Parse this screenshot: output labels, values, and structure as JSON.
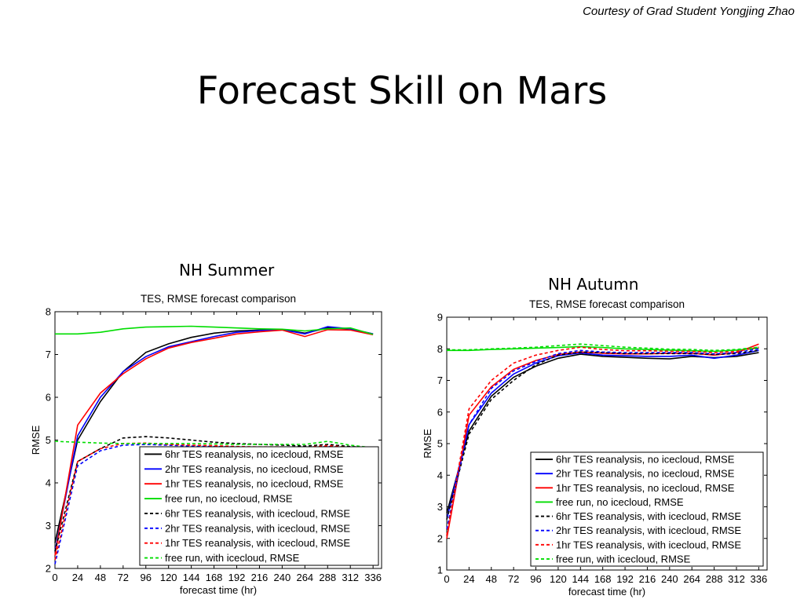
{
  "credit": "Courtesy of Grad Student Yongjing Zhao",
  "slide_title": "Forecast Skill on Mars",
  "panels": [
    {
      "caption": "NH Summer"
    },
    {
      "caption": "NH Autumn"
    }
  ],
  "series_styles": [
    {
      "name": "6hr TES reanalysis, no icecloud, RMSE",
      "color": "#000000",
      "dashed": false
    },
    {
      "name": "2hr TES reanalysis, no icecloud, RMSE",
      "color": "#0000ff",
      "dashed": false
    },
    {
      "name": "1hr TES reanalysis, no icecloud, RMSE",
      "color": "#ff0000",
      "dashed": false
    },
    {
      "name": "free run, no icecloud, RMSE",
      "color": "#00dd00",
      "dashed": false
    },
    {
      "name": "6hr TES reanalysis, with icecloud, RMSE",
      "color": "#000000",
      "dashed": true
    },
    {
      "name": "2hr TES reanalysis, with icecloud, RMSE",
      "color": "#0000ff",
      "dashed": true
    },
    {
      "name": "1hr TES reanalysis, with icecloud, RMSE",
      "color": "#ff0000",
      "dashed": true
    },
    {
      "name": "free run, with icecloud, RMSE",
      "color": "#00dd00",
      "dashed": true
    }
  ],
  "chart_data": [
    {
      "type": "line",
      "title": "TES, RMSE forecast comparison",
      "xlabel": "forecast time (hr)",
      "ylabel": "RMSE",
      "xlim": [
        0,
        345
      ],
      "ylim": [
        2,
        8
      ],
      "xticks": [
        0,
        24,
        48,
        72,
        96,
        120,
        144,
        168,
        192,
        216,
        240,
        264,
        288,
        312,
        336
      ],
      "yticks": [
        2,
        3,
        4,
        5,
        6,
        7,
        8
      ],
      "grid": false,
      "legend": "bottom-right",
      "x": [
        0,
        24,
        48,
        72,
        96,
        120,
        144,
        168,
        192,
        216,
        240,
        264,
        288,
        312,
        336
      ],
      "series": [
        {
          "name": "6hr TES reanalysis, no icecloud, RMSE",
          "values": [
            2.6,
            5.0,
            5.9,
            6.6,
            7.05,
            7.25,
            7.4,
            7.5,
            7.55,
            7.57,
            7.58,
            7.5,
            7.62,
            7.6,
            7.48
          ]
        },
        {
          "name": "2hr TES reanalysis, no icecloud, RMSE",
          "values": [
            2.4,
            5.1,
            6.0,
            6.6,
            6.95,
            7.18,
            7.3,
            7.42,
            7.52,
            7.56,
            7.58,
            7.48,
            7.65,
            7.6,
            7.48
          ]
        },
        {
          "name": "1hr TES reanalysis, no icecloud, RMSE",
          "values": [
            2.3,
            5.35,
            6.1,
            6.55,
            6.9,
            7.15,
            7.28,
            7.38,
            7.48,
            7.53,
            7.57,
            7.42,
            7.58,
            7.57,
            7.46
          ]
        },
        {
          "name": "free run, no icecloud, RMSE",
          "values": [
            7.48,
            7.48,
            7.52,
            7.6,
            7.64,
            7.65,
            7.66,
            7.64,
            7.62,
            7.6,
            7.59,
            7.55,
            7.6,
            7.62,
            7.47
          ]
        },
        {
          "name": "6hr TES reanalysis, with icecloud, RMSE",
          "values": [
            2.4,
            4.5,
            4.8,
            5.05,
            5.08,
            5.05,
            5.0,
            4.95,
            4.92,
            4.9,
            4.88,
            4.86,
            4.9,
            4.85,
            4.82
          ]
        },
        {
          "name": "2hr TES reanalysis, with icecloud, RMSE",
          "values": [
            2.1,
            4.4,
            4.75,
            4.88,
            4.9,
            4.88,
            4.86,
            4.85,
            4.84,
            4.83,
            4.83,
            4.82,
            4.85,
            4.82,
            4.8
          ]
        },
        {
          "name": "1hr TES reanalysis, with icecloud, RMSE",
          "values": [
            2.2,
            4.5,
            4.8,
            4.92,
            4.93,
            4.9,
            4.88,
            4.87,
            4.85,
            4.84,
            4.84,
            4.83,
            4.87,
            4.83,
            4.81
          ]
        },
        {
          "name": "free run, with icecloud, RMSE",
          "values": [
            4.97,
            4.95,
            4.93,
            4.92,
            4.92,
            4.92,
            4.92,
            4.91,
            4.9,
            4.9,
            4.9,
            4.9,
            4.97,
            4.88,
            4.82
          ]
        }
      ]
    },
    {
      "type": "line",
      "title": "TES, RMSE forecast comparison",
      "xlabel": "forecast time (hr)",
      "ylabel": "RMSE",
      "xlim": [
        0,
        345
      ],
      "ylim": [
        1,
        9
      ],
      "xticks": [
        0,
        24,
        48,
        72,
        96,
        120,
        144,
        168,
        192,
        216,
        240,
        264,
        288,
        312,
        336
      ],
      "yticks": [
        1,
        2,
        3,
        4,
        5,
        6,
        7,
        8,
        9
      ],
      "grid": false,
      "legend": "bottom-right",
      "x": [
        0,
        24,
        48,
        72,
        96,
        120,
        144,
        168,
        192,
        216,
        240,
        264,
        288,
        312,
        336
      ],
      "series": [
        {
          "name": "6hr TES reanalysis, no icecloud, RMSE",
          "values": [
            2.8,
            5.4,
            6.5,
            7.1,
            7.45,
            7.7,
            7.83,
            7.76,
            7.73,
            7.7,
            7.68,
            7.76,
            7.72,
            7.76,
            7.88
          ]
        },
        {
          "name": "2hr TES reanalysis, no icecloud, RMSE",
          "values": [
            2.6,
            5.6,
            6.6,
            7.2,
            7.55,
            7.78,
            7.87,
            7.8,
            7.78,
            7.76,
            7.76,
            7.8,
            7.7,
            7.8,
            7.95
          ]
        },
        {
          "name": "1hr TES reanalysis, no icecloud, RMSE",
          "values": [
            2.0,
            5.9,
            6.8,
            7.35,
            7.63,
            7.82,
            7.9,
            7.86,
            7.84,
            7.84,
            7.86,
            7.86,
            7.8,
            7.88,
            8.15
          ]
        },
        {
          "name": "free run, no icecloud, RMSE",
          "values": [
            7.95,
            7.95,
            7.98,
            8.0,
            8.02,
            8.04,
            8.07,
            8.04,
            8.0,
            7.98,
            7.96,
            7.94,
            7.92,
            7.96,
            8.02
          ]
        },
        {
          "name": "6hr TES reanalysis, with icecloud, RMSE",
          "values": [
            2.6,
            5.3,
            6.4,
            7.0,
            7.5,
            7.8,
            7.9,
            7.88,
            7.85,
            7.85,
            7.85,
            7.85,
            7.82,
            7.85,
            7.95
          ]
        },
        {
          "name": "2hr TES reanalysis, with icecloud, RMSE",
          "values": [
            2.3,
            5.6,
            6.75,
            7.3,
            7.6,
            7.85,
            7.95,
            7.9,
            7.88,
            7.88,
            7.88,
            7.88,
            7.84,
            7.88,
            8.0
          ]
        },
        {
          "name": "1hr TES reanalysis, with icecloud, RMSE",
          "values": [
            2.1,
            6.1,
            7.0,
            7.55,
            7.8,
            7.95,
            8.05,
            7.98,
            7.94,
            7.94,
            7.92,
            7.92,
            7.88,
            7.92,
            8.05
          ]
        },
        {
          "name": "free run, with icecloud, RMSE",
          "values": [
            7.97,
            7.97,
            8.0,
            8.02,
            8.05,
            8.1,
            8.15,
            8.1,
            8.05,
            8.02,
            7.99,
            7.98,
            7.95,
            7.98,
            8.05
          ]
        }
      ]
    }
  ]
}
